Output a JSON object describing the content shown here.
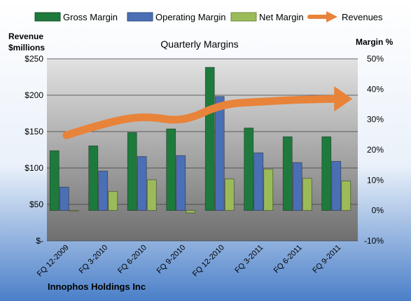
{
  "chart_data": {
    "type": "bar",
    "title": "Quarterly Margins",
    "company": "Innophos Holdings Inc",
    "ylabel_left": [
      "Revenue",
      "$millions"
    ],
    "ylabel_right": "Margin %",
    "y_left_ticks": [
      "$-",
      "$50",
      "$100",
      "$150",
      "$200",
      "$250"
    ],
    "y_right_ticks": [
      "-10%",
      "0%",
      "10%",
      "20%",
      "30%",
      "40%",
      "50%"
    ],
    "ylim_left": [
      0,
      250
    ],
    "ylim_right": [
      -10,
      50
    ],
    "categories": [
      "FQ 12-2009",
      "FQ 3-2010",
      "FQ 6-2010",
      "FQ 9-2010",
      "FQ 12-2010",
      "FQ 3-2011",
      "FQ 6-2011",
      "FQ 9-2011"
    ],
    "legend_position": "top",
    "series": [
      {
        "name": "Gross Margin",
        "axis": "right",
        "kind": "bar",
        "color": "#1e7a3c",
        "values": [
          19.7,
          21.3,
          25.7,
          26.9,
          47.2,
          27.2,
          24.3,
          24.3
        ]
      },
      {
        "name": "Operating Margin",
        "axis": "right",
        "kind": "bar",
        "color": "#4a6fb5",
        "values": [
          7.7,
          13.0,
          17.8,
          18.1,
          37.6,
          19.0,
          15.8,
          16.2
        ]
      },
      {
        "name": "Net Margin",
        "axis": "right",
        "kind": "bar",
        "color": "#9bbb59",
        "values": [
          -0.2,
          6.3,
          10.1,
          -0.8,
          10.4,
          13.6,
          10.6,
          9.7
        ]
      },
      {
        "name": "Revenues",
        "axis": "left",
        "kind": "arrow",
        "color": "#e8833a",
        "values": [
          145,
          162,
          172,
          163,
          188,
          191,
          194,
          195
        ]
      }
    ]
  }
}
